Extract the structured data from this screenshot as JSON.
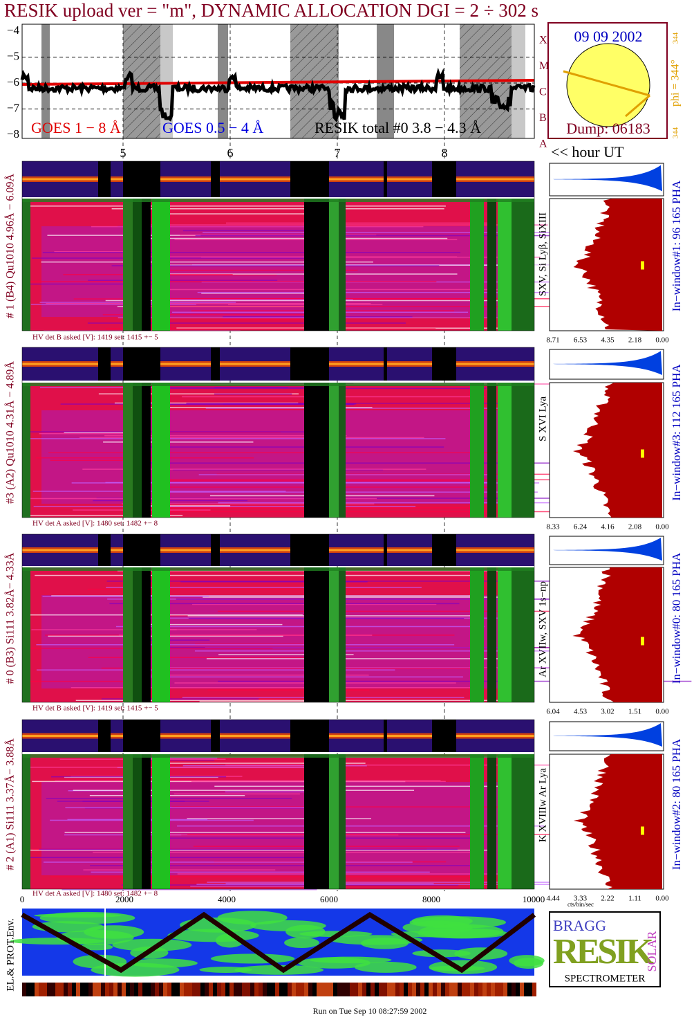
{
  "title": "RESIK upload ver = \"m\", DYNAMIC ALLOCATION  DGI =   2 ÷ 302 s",
  "goes": {
    "yticks": [
      "−4",
      "−5",
      "−6",
      "−7",
      "−8"
    ],
    "classes": [
      "X",
      "M",
      "C",
      "B",
      "A"
    ],
    "legend": [
      "GOES 1 − 8 Å",
      "GOES 0.5 − 4 Å",
      "RESIK total #0  3.8 − 4.3 Å"
    ]
  },
  "sun": {
    "date": "09 09 2002",
    "phi": "phi = 344°",
    "small": [
      "344",
      "344"
    ],
    "dump": "Dump: 06183"
  },
  "hours": [
    "5",
    "6",
    "7",
    "8"
  ],
  "hour_label": "<< hour UT",
  "panels": [
    {
      "label": "# 1 (B4) Qu1010 4.96Å − 6.09Å",
      "hv": "HV det B asked [V]:  1419 set:  1415 +−   5",
      "lines": "SXV, Si Lyβ, SiXIII",
      "window": "In−window#1:   96 165  PHA",
      "ticks": [
        "8.71",
        "6.53",
        "4.35",
        "2.18",
        "0.00"
      ]
    },
    {
      "label": "#3 (A2) Qu1010  4.31Å − 4.89Å",
      "hv": "HV det A asked [V]:  1480 set:  1482 +−   8",
      "lines": "S XVI Lya",
      "window": "In−window#3:   112 165  PHA",
      "ticks": [
        "8.33",
        "6.24",
        "4.16",
        "2.08",
        "0.00"
      ]
    },
    {
      "label": "# 0 (B3) Si111  3.82Å− 4.33Å",
      "hv": "HV det B asked [V]:  1419 set:  1415 +−   5",
      "lines": "Ar XVIIw, SXV 1s−np",
      "window": "In−window#0:   80 165  PHA",
      "ticks": [
        "6.04",
        "4.53",
        "3.02",
        "1.51",
        "0.00"
      ]
    },
    {
      "label": "# 2 (A1) Si111  3.37Å− 3.88Å",
      "hv": "HV det A asked [V]:  1480 set:  1482 +−   8",
      "lines": "K XVIIIw  Ar Lya",
      "window": "In−window#2:   80 165  PHA",
      "ticks": [
        "4.44",
        "3.33",
        "2.22",
        "1.11",
        "0.00"
      ]
    }
  ],
  "xticks": [
    "0",
    "2000",
    "4000",
    "6000",
    "8000",
    "10000"
  ],
  "xunit": "cts/bin/sec",
  "env_label": "EL.& PROT.Env.",
  "logo": {
    "top": "BRAGG",
    "big": "RESIK",
    "side": "SOLAR",
    "bottom": "SPECTROMETER"
  },
  "footer": "Run on Tue Sep 10 08:27:59 2002"
}
